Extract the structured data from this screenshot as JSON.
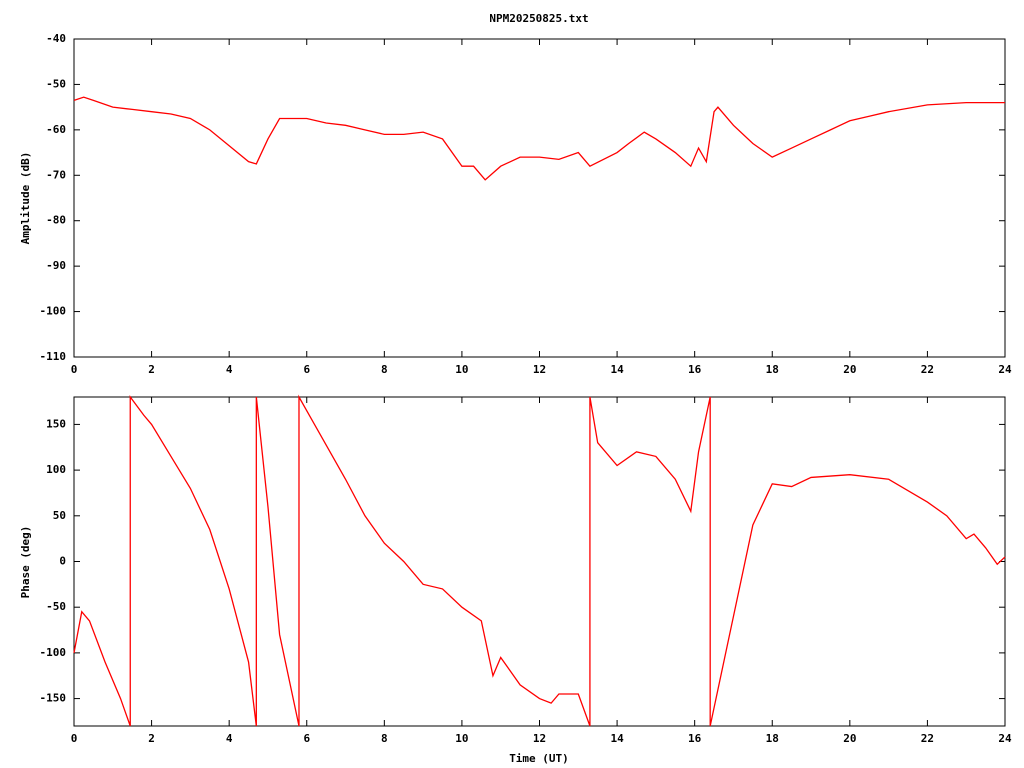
{
  "chart_data": [
    {
      "type": "line",
      "title": "NPM20250825.txt",
      "ylabel": "Amplitude (dB)",
      "xlim": [
        0,
        24
      ],
      "xticks": [
        0,
        2,
        4,
        6,
        8,
        10,
        12,
        14,
        16,
        18,
        20,
        22,
        24
      ],
      "ylim": [
        -110,
        -40
      ],
      "yticks": [
        -110,
        -100,
        -90,
        -80,
        -70,
        -60,
        -50,
        -40
      ],
      "grid": false,
      "series": [
        {
          "color": "#ff0000",
          "x": [
            0,
            0.25,
            0.5,
            1,
            1.5,
            2,
            2.5,
            3,
            3.5,
            4,
            4.5,
            4.7,
            5,
            5.3,
            6,
            6.5,
            7,
            7.5,
            8,
            8.5,
            9,
            9.5,
            10,
            10.3,
            10.6,
            11,
            11.5,
            12,
            12.5,
            13,
            13.3,
            14,
            14.3,
            14.7,
            15,
            15.5,
            15.9,
            16.1,
            16.3,
            16.5,
            16.6,
            17,
            17.5,
            18,
            18.5,
            19,
            19.5,
            20,
            20.5,
            21,
            22,
            23,
            24
          ],
          "values": [
            -53.5,
            -52.8,
            -53.5,
            -55,
            -55.5,
            -56,
            -56.5,
            -57.5,
            -60,
            -63.5,
            -67,
            -67.5,
            -62,
            -57.5,
            -57.5,
            -58.5,
            -59,
            -60,
            -61,
            -61,
            -60.5,
            -62,
            -68,
            -68,
            -71,
            -68,
            -66,
            -66,
            -66.5,
            -65,
            -68,
            -65,
            -63,
            -60.5,
            -62,
            -65,
            -68,
            -64,
            -67,
            -56,
            -55,
            -59,
            -63,
            -66,
            -64,
            -62,
            -60,
            -58,
            -57,
            -56,
            -54.5,
            -54,
            -54
          ]
        }
      ]
    },
    {
      "type": "line",
      "xlabel": "Time (UT)",
      "ylabel": "Phase (deg)",
      "xlim": [
        0,
        24
      ],
      "xticks": [
        0,
        2,
        4,
        6,
        8,
        10,
        12,
        14,
        16,
        18,
        20,
        22,
        24
      ],
      "ylim": [
        -180,
        180
      ],
      "yticks": [
        -150,
        -100,
        -50,
        0,
        50,
        100,
        150
      ],
      "grid": false,
      "series": [
        {
          "color": "#ff0000",
          "x": [
            0,
            0.2,
            0.4,
            0.8,
            1.2,
            1.45,
            1.45,
            1.8,
            2,
            2.5,
            3,
            3.5,
            4,
            4.5,
            4.7,
            4.7,
            5,
            5.3,
            5.8,
            5.8,
            6.2,
            7,
            7.5,
            8,
            8.5,
            9,
            9.5,
            10,
            10.5,
            10.8,
            11,
            11.5,
            12,
            12.3,
            12.5,
            13,
            13.3,
            13.3,
            13.5,
            14,
            14.5,
            15,
            15.5,
            15.9,
            16.1,
            16.4,
            16.4,
            17,
            17.5,
            18,
            18.5,
            19,
            20,
            21,
            22,
            22.5,
            23,
            23.2,
            23.5,
            23.8,
            24
          ],
          "values": [
            -100,
            -55,
            -65,
            -110,
            -150,
            -180,
            180,
            160,
            150,
            115,
            80,
            35,
            -30,
            -110,
            -180,
            180,
            60,
            -80,
            -180,
            180,
            150,
            90,
            50,
            20,
            0,
            -25,
            -30,
            -50,
            -65,
            -125,
            -105,
            -135,
            -150,
            -155,
            -145,
            -145,
            -180,
            180,
            130,
            105,
            120,
            115,
            90,
            55,
            120,
            180,
            -180,
            -60,
            40,
            85,
            82,
            92,
            95,
            90,
            65,
            50,
            25,
            30,
            15,
            -3,
            5
          ]
        }
      ]
    }
  ]
}
